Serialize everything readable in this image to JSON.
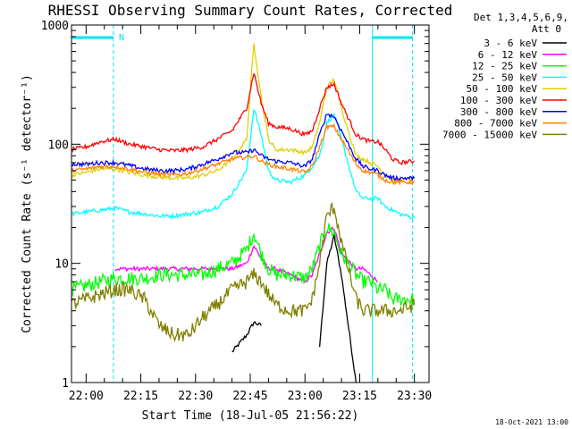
{
  "chart_data": {
    "type": "line",
    "title": "RHESSI Observing Summary Count Rates, Corrected",
    "xlabel": "Start Time (18-Jul-05 21:56:22)",
    "ylabel": "Corrected Count Rate (s⁻¹ detector⁻¹)",
    "footer": "18-Oct-2021 13:00",
    "legend_header": [
      "Det 1,3,4,5,6,9,",
      "Att 0"
    ],
    "yscale": "log",
    "ylim": [
      1,
      1000
    ],
    "xlim": [
      "21:56",
      "23:34"
    ],
    "y_ticks": [
      "1",
      "10",
      "100",
      "1000"
    ],
    "x_ticks": [
      "22:00",
      "22:15",
      "22:30",
      "22:45",
      "23:00",
      "23:15",
      "23:30"
    ],
    "x_tick_minutes": [
      4,
      19,
      34,
      49,
      64,
      79,
      94
    ],
    "night_markers": {
      "label": "N",
      "color": "#00e5e5",
      "intervals_minutes": [
        [
          0,
          11.5
        ],
        [
          82.5,
          93.5
        ]
      ]
    },
    "x_minutes": [
      0,
      4,
      8,
      12,
      16,
      20,
      24,
      28,
      32,
      36,
      40,
      44,
      48,
      50,
      52,
      54,
      56,
      60,
      64,
      66,
      68,
      70,
      72,
      74,
      78,
      80,
      82,
      84,
      86,
      88,
      90,
      94
    ],
    "series": [
      {
        "name": "3 - 6 keV",
        "color": "#000000",
        "values": [
          null,
          null,
          null,
          null,
          null,
          null,
          null,
          null,
          null,
          null,
          null,
          1.8,
          2.5,
          3.2,
          3.0,
          null,
          null,
          null,
          null,
          null,
          2.0,
          10,
          17,
          8,
          1.0,
          null,
          null,
          null,
          null,
          null,
          null,
          null
        ]
      },
      {
        "name": "6 - 12 keV",
        "color": "#ff00ff",
        "values": [
          null,
          null,
          null,
          9.0,
          9.0,
          9.0,
          9.0,
          9.0,
          9.0,
          9.0,
          9.0,
          9.0,
          10,
          14,
          11,
          9.0,
          9.0,
          8.0,
          7.0,
          8.0,
          12,
          18,
          20,
          12,
          9.0,
          9.0,
          8.0,
          7.0,
          null,
          null,
          null,
          null
        ]
      },
      {
        "name": "12 - 25 keV",
        "color": "#00ff00",
        "values": [
          6.0,
          6.5,
          7.0,
          7.5,
          7.5,
          7.5,
          8.0,
          8.0,
          8.0,
          8.0,
          9.0,
          10,
          13,
          18,
          12,
          9.0,
          8.0,
          8.0,
          7.5,
          9.0,
          14,
          20,
          18,
          12,
          8.0,
          7.0,
          7.0,
          6.0,
          6.0,
          5.0,
          5.0,
          5.0
        ]
      },
      {
        "name": "25 - 50 keV",
        "color": "#00ffff",
        "values": [
          26,
          27,
          28,
          29,
          27,
          26,
          25,
          25,
          26,
          27,
          30,
          38,
          60,
          200,
          120,
          60,
          50,
          48,
          55,
          65,
          80,
          150,
          180,
          110,
          40,
          35,
          35,
          35,
          30,
          28,
          26,
          24
        ]
      },
      {
        "name": "50 - 100 keV",
        "color": "#e0d000",
        "values": [
          55,
          58,
          62,
          62,
          58,
          55,
          53,
          52,
          52,
          55,
          60,
          75,
          110,
          700,
          250,
          110,
          90,
          90,
          85,
          95,
          150,
          300,
          350,
          200,
          80,
          75,
          70,
          65,
          55,
          50,
          50,
          50
        ]
      },
      {
        "name": "100 - 300 keV",
        "color": "#ff0000",
        "values": [
          90,
          95,
          105,
          110,
          100,
          95,
          90,
          88,
          90,
          95,
          110,
          130,
          200,
          400,
          220,
          150,
          140,
          135,
          120,
          130,
          200,
          300,
          320,
          220,
          120,
          110,
          105,
          105,
          90,
          75,
          70,
          72
        ]
      },
      {
        "name": "300 - 800 keV",
        "color": "#0000ff",
        "values": [
          68,
          68,
          70,
          70,
          66,
          62,
          60,
          60,
          62,
          68,
          75,
          85,
          85,
          90,
          80,
          75,
          72,
          70,
          65,
          75,
          120,
          180,
          170,
          130,
          75,
          65,
          62,
          60,
          55,
          52,
          52,
          52
        ]
      },
      {
        "name": "800 - 7000 keV",
        "color": "#ff8000",
        "values": [
          60,
          62,
          65,
          65,
          62,
          58,
          56,
          55,
          57,
          62,
          68,
          75,
          78,
          80,
          72,
          68,
          65,
          62,
          58,
          65,
          95,
          140,
          140,
          110,
          68,
          60,
          58,
          55,
          50,
          48,
          48,
          48
        ]
      },
      {
        "name": "7000 - 15000 keV",
        "color": "#808000",
        "values": [
          4.5,
          5.0,
          5.5,
          6.0,
          6.0,
          5.0,
          3.0,
          2.5,
          2.5,
          3.5,
          4.5,
          6.0,
          7.0,
          8.0,
          7.0,
          5.5,
          4.5,
          4.0,
          4.0,
          5.0,
          10,
          25,
          30,
          15,
          5.0,
          4.0,
          4.0,
          4.0,
          4.0,
          4.0,
          4.0,
          4.5
        ]
      }
    ]
  }
}
